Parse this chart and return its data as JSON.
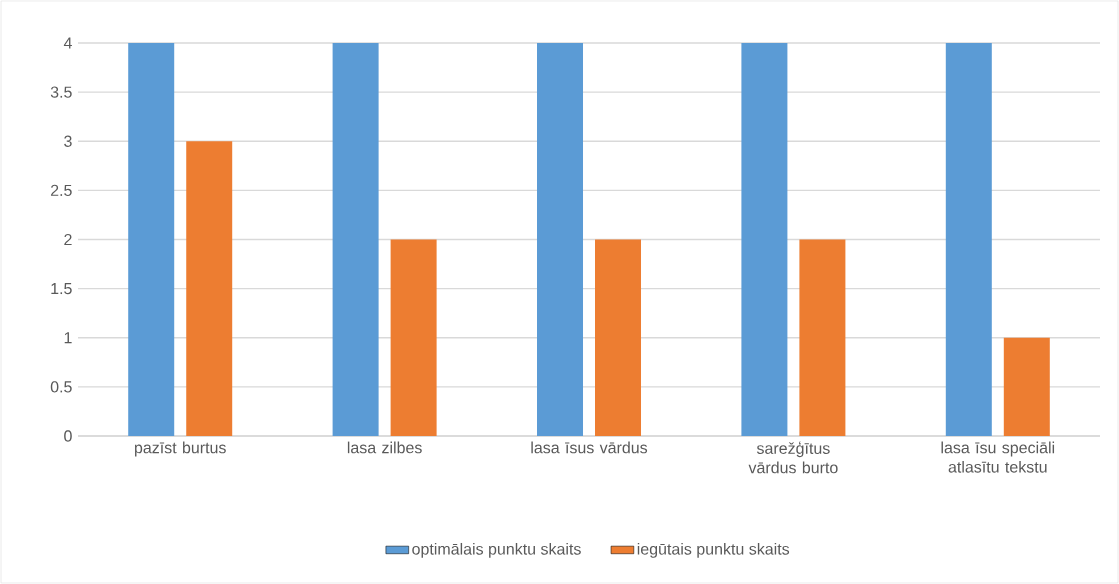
{
  "chart_data": {
    "type": "bar",
    "categories": [
      "pazīst burtus",
      "lasa zilbes",
      "lasa īsus vārdus",
      "sarežģītus vārdus burto",
      "lasa īsu speciāli atlasītu tekstu"
    ],
    "series": [
      {
        "name": "optimālais punktu skaits",
        "color": "#5b9bd5",
        "values": [
          4,
          4,
          4,
          4,
          4
        ]
      },
      {
        "name": "iegūtais punktu skaits",
        "color": "#ed7d31",
        "values": [
          3,
          2,
          2,
          2,
          1
        ]
      }
    ],
    "ylim": [
      0,
      4
    ],
    "yticks": [
      0,
      0.5,
      1,
      1.5,
      2,
      2.5,
      3,
      3.5,
      4
    ],
    "grid": "y",
    "legend": "bottom"
  }
}
